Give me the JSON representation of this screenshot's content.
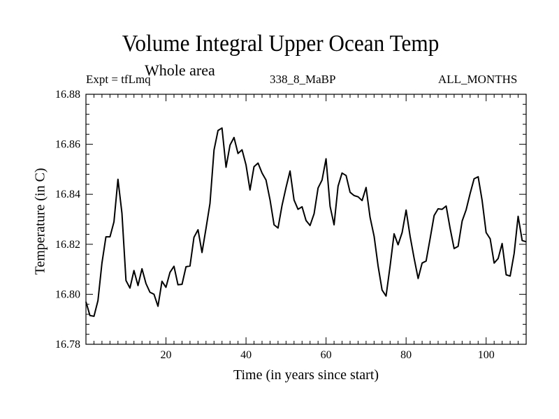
{
  "chart_data": {
    "type": "line",
    "title": "Volume Integral Upper Ocean Temp",
    "subtitle": "Whole area",
    "expt_label": "Expt = tfLmq",
    "run_label": "338_8_MaBP",
    "months_label": "ALL_MONTHS",
    "xlabel": "Time (in years since start)",
    "ylabel": "Temperature (in C)",
    "xlim": [
      0,
      110
    ],
    "ylim": [
      16.78,
      16.88
    ],
    "x_ticks": [
      20,
      40,
      60,
      80,
      100
    ],
    "x_tick_labels": [
      "20",
      "40",
      "60",
      "80",
      "100"
    ],
    "y_ticks": [
      16.78,
      16.8,
      16.82,
      16.84,
      16.86,
      16.88
    ],
    "y_tick_labels": [
      "16.78",
      "16.80",
      "16.82",
      "16.84",
      "16.86",
      "16.88"
    ],
    "series": [
      {
        "name": "Temperature",
        "x": [
          0,
          1,
          2,
          3,
          4,
          5,
          6,
          7,
          8,
          9,
          10,
          11,
          12,
          13,
          14,
          15,
          16,
          17,
          18,
          19,
          20,
          21,
          22,
          23,
          24,
          25,
          26,
          27,
          28,
          29,
          30,
          31,
          32,
          33,
          34,
          35,
          36,
          37,
          38,
          39,
          40,
          41,
          42,
          43,
          44,
          45,
          46,
          47,
          48,
          49,
          50,
          51,
          52,
          53,
          54,
          55,
          56,
          57,
          58,
          59,
          60,
          61,
          62,
          63,
          64,
          65,
          66,
          67,
          68,
          69,
          70,
          71,
          72,
          73,
          74,
          75,
          76,
          77,
          78,
          79,
          80,
          81,
          82,
          83,
          84,
          85,
          86,
          87,
          88,
          89,
          90,
          91,
          92,
          93,
          94,
          95,
          96,
          97,
          98,
          99,
          100,
          101,
          102,
          103,
          104,
          105,
          106,
          107,
          108,
          109,
          110
        ],
        "values": [
          16.797,
          16.7915,
          16.7912,
          16.7975,
          16.8125,
          16.823,
          16.823,
          16.829,
          16.846,
          16.8325,
          16.8055,
          16.8025,
          16.8095,
          16.8035,
          16.8102,
          16.8043,
          16.8008,
          16.8,
          16.7952,
          16.8052,
          16.8028,
          16.8088,
          16.8112,
          16.8038,
          16.804,
          16.811,
          16.8113,
          16.8228,
          16.8258,
          16.8167,
          16.8263,
          16.8363,
          16.8577,
          16.8655,
          16.8665,
          16.8508,
          16.8597,
          16.8627,
          16.8563,
          16.8578,
          16.8517,
          16.8417,
          16.851,
          16.8525,
          16.8485,
          16.8457,
          16.8377,
          16.8278,
          16.8265,
          16.8355,
          16.8428,
          16.8493,
          16.8377,
          16.834,
          16.835,
          16.8295,
          16.8275,
          16.8322,
          16.8425,
          16.8457,
          16.8542,
          16.8352,
          16.8278,
          16.8432,
          16.8485,
          16.8475,
          16.8408,
          16.8395,
          16.839,
          16.8375,
          16.8427,
          16.8308,
          16.8232,
          16.8113,
          16.8017,
          16.7993,
          16.8113,
          16.8242,
          16.8198,
          16.8247,
          16.8337,
          16.8232,
          16.8145,
          16.8063,
          16.8125,
          16.8133,
          16.8222,
          16.8315,
          16.8342,
          16.834,
          16.8353,
          16.8263,
          16.8183,
          16.8192,
          16.8293,
          16.8338,
          16.8403,
          16.8462,
          16.847,
          16.8375,
          16.8247,
          16.8222,
          16.8125,
          16.8143,
          16.8203,
          16.8078,
          16.8073,
          16.8163,
          16.8312,
          16.8215,
          16.821
        ]
      }
    ]
  }
}
